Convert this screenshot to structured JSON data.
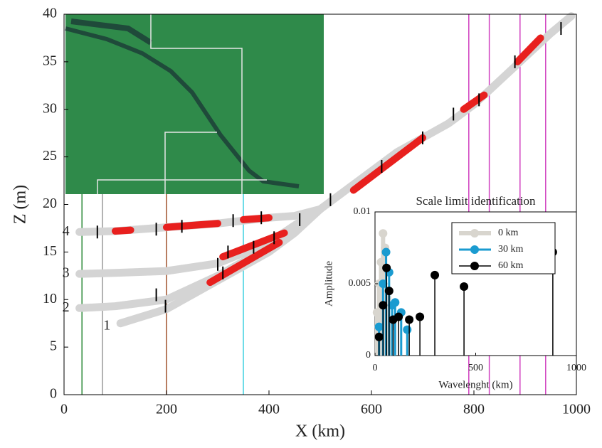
{
  "chart_data": [
    {
      "type": "line",
      "xlabel": "X (km)",
      "ylabel": "Z (m)",
      "xlim": [
        0,
        1000
      ],
      "ylim": [
        0,
        40
      ],
      "xticks": [
        0,
        200,
        400,
        600,
        800,
        1000
      ],
      "yticks": [
        0,
        5,
        10,
        15,
        20,
        25,
        30,
        35,
        40
      ],
      "series": [
        {
          "name": "1",
          "color": "#d4d4d4",
          "x": [
            110,
            200,
            300,
            400,
            450,
            500,
            550,
            600,
            650,
            700,
            750,
            800,
            850,
            900,
            950,
            990
          ],
          "values": [
            7.5,
            9.0,
            12.0,
            15.0,
            17.0,
            19.5,
            21.5,
            23.5,
            25.5,
            27.0,
            28.5,
            30.5,
            33.0,
            35.5,
            38.0,
            39.8
          ]
        },
        {
          "name": "2",
          "color": "#d4d4d4",
          "x": [
            30,
            100,
            200,
            300,
            400,
            450,
            500
          ],
          "values": [
            9.1,
            9.3,
            10.0,
            12.5,
            15.5,
            17.5,
            19.5
          ]
        },
        {
          "name": "3",
          "color": "#d4d4d4",
          "x": [
            30,
            100,
            200,
            300,
            400,
            450,
            500
          ],
          "values": [
            12.7,
            12.8,
            13.0,
            13.8,
            16.0,
            17.8,
            19.5
          ]
        },
        {
          "name": "4",
          "color": "#d4d4d4",
          "x": [
            30,
            100,
            200,
            300,
            400,
            450,
            500
          ],
          "values": [
            17.1,
            17.2,
            17.6,
            18.0,
            18.6,
            18.8,
            19.5
          ]
        }
      ],
      "highlights": {
        "color": "#e8201e",
        "segments": [
          {
            "x": [
              100,
              130
            ],
            "values": [
              17.2,
              17.3
            ]
          },
          {
            "x": [
              200,
              300
            ],
            "values": [
              17.6,
              18.0
            ]
          },
          {
            "x": [
              350,
              400
            ],
            "values": [
              18.4,
              18.6
            ]
          },
          {
            "x": [
              310,
              430
            ],
            "values": [
              14.5,
              17.0
            ]
          },
          {
            "x": [
              285,
              420
            ],
            "values": [
              11.8,
              16.0
            ]
          },
          {
            "x": [
              565,
              700
            ],
            "values": [
              21.5,
              27.0
            ]
          },
          {
            "x": [
              780,
              820
            ],
            "values": [
              30.0,
              31.5
            ]
          },
          {
            "x": [
              885,
              930
            ],
            "values": [
              35.0,
              37.5
            ]
          }
        ]
      },
      "breaks": [
        [
          65,
          17.1
        ],
        [
          180,
          17.4
        ],
        [
          230,
          17.7
        ],
        [
          330,
          18.3
        ],
        [
          385,
          18.6
        ],
        [
          300,
          13.7
        ],
        [
          320,
          15.0
        ],
        [
          370,
          15.5
        ],
        [
          410,
          16.5
        ],
        [
          180,
          10.5
        ],
        [
          198,
          9.3
        ],
        [
          310,
          12.8
        ],
        [
          460,
          18.4
        ],
        [
          520,
          20.5
        ],
        [
          620,
          24.0
        ],
        [
          700,
          27.0
        ],
        [
          760,
          29.5
        ],
        [
          810,
          31.0
        ],
        [
          880,
          35.0
        ],
        [
          970,
          38.5
        ]
      ],
      "vlines": [
        {
          "x": 35,
          "color": "#2e8b3a"
        },
        {
          "x": 75,
          "color": "#9a9a9a"
        },
        {
          "x": 200,
          "color": "#a0522d"
        },
        {
          "x": 350,
          "color": "#3fd0e0"
        },
        {
          "x": 790,
          "color": "#d040c0"
        },
        {
          "x": 830,
          "color": "#d040c0"
        },
        {
          "x": 890,
          "color": "#d040c0"
        },
        {
          "x": 940,
          "color": "#d040c0"
        }
      ]
    },
    {
      "type": "stem",
      "title": "Scale limit identification",
      "xlabel": "Wavelenght (km)",
      "ylabel": "Amplitude",
      "xlim": [
        0,
        1000
      ],
      "ylim": [
        0,
        0.01
      ],
      "xticks": [
        0,
        500,
        1000
      ],
      "yticks": [
        0,
        0.005,
        0.01
      ],
      "series": [
        {
          "name": "0 km",
          "color": "#d8d5ce",
          "x": [
            10,
            20,
            30,
            40,
            50,
            60,
            80
          ],
          "values": [
            0.003,
            0.005,
            0.0065,
            0.0085,
            0.0075,
            0.004,
            0.002
          ]
        },
        {
          "name": "30 km",
          "color": "#1a9bd0",
          "x": [
            20,
            40,
            55,
            70,
            85,
            100,
            130,
            160
          ],
          "values": [
            0.002,
            0.005,
            0.0072,
            0.0058,
            0.0035,
            0.0037,
            0.003,
            0.0018
          ]
        },
        {
          "name": "60 km",
          "color": "#000000",
          "x": [
            20,
            40,
            57,
            70,
            90,
            117,
            170,
            223,
            297,
            442,
            883
          ],
          "values": [
            0.0013,
            0.0035,
            0.0061,
            0.0045,
            0.0025,
            0.0027,
            0.0025,
            0.0027,
            0.0056,
            0.0048,
            0.0072
          ]
        }
      ]
    }
  ]
}
